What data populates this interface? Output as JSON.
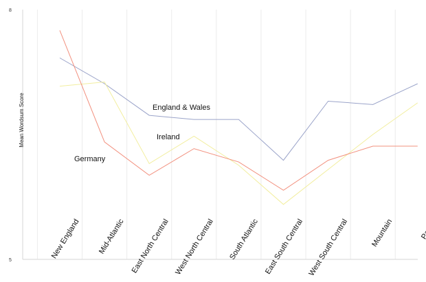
{
  "chart_data": {
    "type": "line",
    "ylabel": "Mean Wordsum Score",
    "xlabel": "",
    "ylim": [
      5,
      8
    ],
    "y_ticks": [
      "5",
      "8"
    ],
    "categories": [
      "New England",
      "Mid-Atlantic",
      "East North Central",
      "West North Central",
      "South Atlantic",
      "East South Central",
      "West South Central",
      "Mountain",
      "Pacific"
    ],
    "grid": "vertical",
    "series": [
      {
        "name": "England & Wales",
        "color": "#9aa3c9",
        "values": [
          7.42,
          7.11,
          6.73,
          6.68,
          6.68,
          6.19,
          6.9,
          6.86,
          7.11
        ]
      },
      {
        "name": "Ireland",
        "color": "#f2ee9e",
        "values": [
          7.08,
          7.13,
          6.15,
          6.48,
          6.13,
          5.66,
          6.08,
          6.5,
          6.88
        ]
      },
      {
        "name": "Germany",
        "color": "#f2907e",
        "values": [
          7.75,
          6.41,
          6.01,
          6.33,
          6.17,
          5.83,
          6.19,
          6.36,
          6.36
        ]
      }
    ]
  }
}
